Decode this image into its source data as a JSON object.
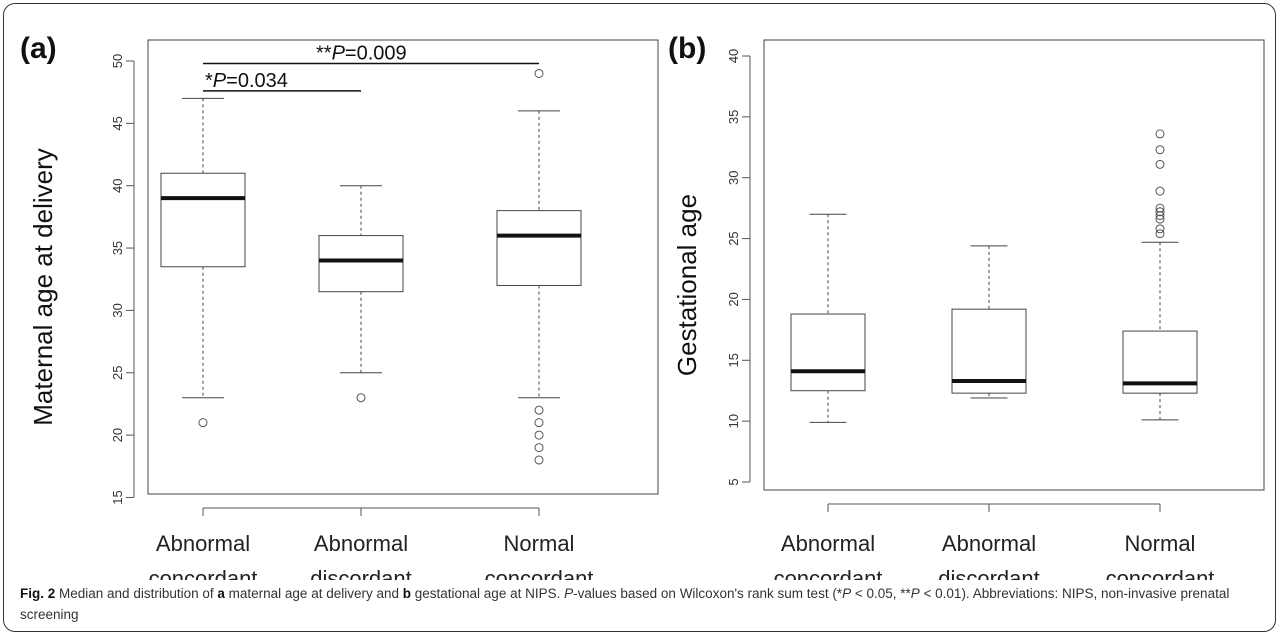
{
  "chart_data": [
    {
      "panel_label": "(a)",
      "type": "boxplot",
      "ylabel": "Maternal age at delivery",
      "ylim": [
        15,
        50
      ],
      "y_ticks": [
        15,
        20,
        25,
        30,
        35,
        40,
        45,
        50
      ],
      "categories": [
        [
          "Abnormal",
          "concordant"
        ],
        [
          "Abnormal",
          "discordant"
        ],
        [
          "Normal",
          "concordant"
        ]
      ],
      "boxes": [
        {
          "q1": 33.5,
          "median": 39,
          "q3": 41,
          "whisker_low": 23,
          "whisker_high": 47,
          "outliers": [
            21
          ]
        },
        {
          "q1": 31.5,
          "median": 34,
          "q3": 36,
          "whisker_low": 25,
          "whisker_high": 40,
          "outliers": [
            23
          ]
        },
        {
          "q1": 32,
          "median": 36,
          "q3": 38,
          "whisker_low": 23,
          "whisker_high": 46,
          "outliers": [
            22,
            21,
            20,
            19,
            18,
            49
          ]
        }
      ],
      "annotations": [
        {
          "prefix": "**",
          "p_label": "P",
          "rest": "=0.009",
          "from": 0,
          "to": 2,
          "y": 49.8
        },
        {
          "prefix": "*",
          "p_label": "P",
          "rest": "=0.034",
          "from": 0,
          "to": 1,
          "y": 47.6
        }
      ]
    },
    {
      "panel_label": "(b)",
      "type": "boxplot",
      "ylabel": "Gestational age",
      "ylim": [
        5,
        40
      ],
      "y_ticks": [
        5,
        10,
        15,
        20,
        25,
        30,
        35,
        40
      ],
      "categories": [
        [
          "Abnormal",
          "concordant"
        ],
        [
          "Abnormal",
          "discordant"
        ],
        [
          "Normal",
          "concordant"
        ]
      ],
      "boxes": [
        {
          "q1": 12.5,
          "median": 14.1,
          "q3": 18.8,
          "whisker_low": 9.9,
          "whisker_high": 27,
          "outliers": []
        },
        {
          "q1": 12.3,
          "median": 13.3,
          "q3": 19.2,
          "whisker_low": 11.9,
          "whisker_high": 24.4,
          "outliers": []
        },
        {
          "q1": 12.3,
          "median": 13.1,
          "q3": 17.4,
          "whisker_low": 10.1,
          "whisker_high": 24.7,
          "outliers": [
            25.4,
            25.8,
            26.6,
            26.9,
            27.2,
            27.5,
            28.9,
            31.1,
            32.3,
            33.6
          ]
        }
      ],
      "annotations": []
    }
  ],
  "caption": {
    "fig": "Fig. 2",
    "t1": " Median and distribution of ",
    "a": "a",
    "t2": " maternal age at delivery and ",
    "b": "b",
    "t3": " gestational age at NIPS. ",
    "p1": "P",
    "t4": "-values based on Wilcoxon's rank sum test (*",
    "p2": "P",
    "t5": " < 0.05, **",
    "p3": "P",
    "t6": " < 0.01). Abbreviations: NIPS, non-invasive prenatal screening"
  }
}
